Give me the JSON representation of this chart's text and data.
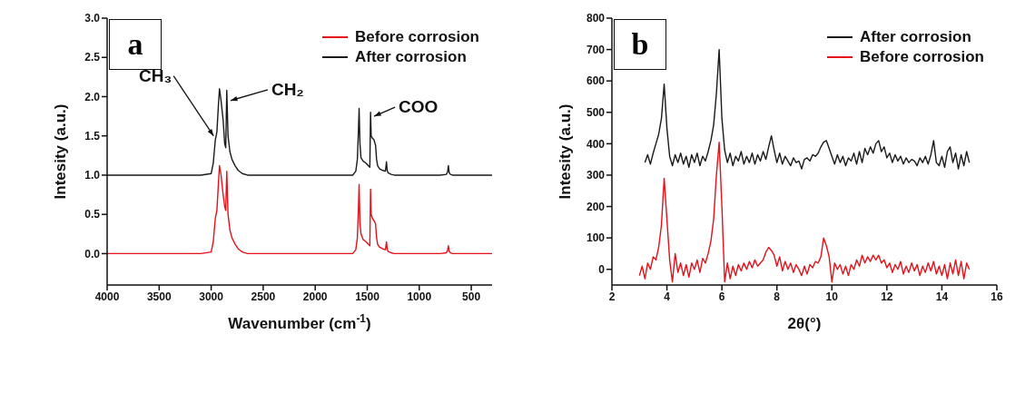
{
  "chart_data": [
    {
      "type": "line",
      "title": "a",
      "xlabel": "Wavenumber (cm$^{-1}$)",
      "ylabel": "Intesity (a.u.)",
      "xlim": [
        4000,
        300
      ],
      "xticks": [
        4000,
        3500,
        3000,
        2500,
        2000,
        1500,
        1000,
        500
      ],
      "ylim": [
        -0.4,
        3.0
      ],
      "yticks": [
        {
          "value": 0,
          "label": "0.0"
        },
        {
          "value": 0.5,
          "label": "0.5"
        },
        {
          "value": 1,
          "label": "1.0"
        },
        {
          "value": 1.5,
          "label": "1.5"
        },
        {
          "value": 2,
          "label": "2.0"
        },
        {
          "value": 2.5,
          "label": "2.5"
        },
        {
          "value": 3,
          "label": "3.0"
        }
      ],
      "grid": false,
      "legend": "top right",
      "marker": "none",
      "line_style": "solid",
      "annotations": [
        {
          "text": "CH₃",
          "x": 2960,
          "y": 1.5
        },
        {
          "text": "CH₂",
          "x": 2840,
          "y": 1.95
        },
        {
          "text": "COO",
          "x": 1460,
          "y": 1.75
        }
      ],
      "series": [
        {
          "name": "Before corrosion",
          "color": "#e3121b",
          "x": [
            4000,
            3100,
            3000,
            2980,
            2960,
            2945,
            2930,
            2920,
            2905,
            2885,
            2870,
            2860,
            2850,
            2838,
            2820,
            2800,
            2770,
            2740,
            2700,
            2650,
            1640,
            1610,
            1595,
            1585,
            1578,
            1570,
            1560,
            1540,
            1510,
            1490,
            1475,
            1468,
            1462,
            1450,
            1435,
            1420,
            1410,
            1400,
            1380,
            1350,
            1325,
            1315,
            1308,
            1300,
            1270,
            1240,
            800,
            740,
            728,
            720,
            712,
            700,
            680,
            300
          ],
          "values": [
            0,
            0,
            0.02,
            0.15,
            0.45,
            0.55,
            0.9,
            1.12,
            1.0,
            0.75,
            0.6,
            0.55,
            1.05,
            0.5,
            0.3,
            0.2,
            0.12,
            0.06,
            0.02,
            0,
            0,
            0.05,
            0.2,
            0.55,
            0.88,
            0.4,
            0.25,
            0.18,
            0.15,
            0.12,
            0.1,
            0.82,
            0.5,
            0.45,
            0.42,
            0.38,
            0.2,
            0.12,
            0.08,
            0.06,
            0.05,
            0.15,
            0.06,
            0.03,
            0.01,
            0,
            0,
            0.01,
            0.04,
            0.1,
            0.03,
            0.01,
            0,
            0
          ]
        },
        {
          "name": "After corrosion",
          "color": "#1a1a1a",
          "x": [
            4000,
            3100,
            3000,
            2980,
            2960,
            2945,
            2930,
            2920,
            2905,
            2885,
            2870,
            2860,
            2850,
            2838,
            2820,
            2800,
            2770,
            2740,
            2700,
            2650,
            1640,
            1610,
            1595,
            1585,
            1578,
            1570,
            1560,
            1540,
            1510,
            1490,
            1475,
            1468,
            1462,
            1450,
            1435,
            1420,
            1410,
            1400,
            1380,
            1350,
            1325,
            1315,
            1308,
            1300,
            1270,
            1240,
            800,
            740,
            728,
            720,
            712,
            700,
            680,
            300
          ],
          "values": [
            1,
            1,
            1.02,
            1.15,
            1.45,
            1.55,
            1.9,
            2.1,
            1.95,
            1.7,
            1.4,
            1.35,
            2.08,
            1.5,
            1.3,
            1.2,
            1.12,
            1.06,
            1.02,
            1,
            1,
            1.05,
            1.2,
            1.55,
            1.85,
            1.4,
            1.22,
            1.18,
            1.15,
            1.12,
            1.1,
            1.8,
            1.5,
            1.47,
            1.45,
            1.38,
            1.2,
            1.12,
            1.08,
            1.06,
            1.05,
            1.17,
            1.06,
            1.03,
            1.01,
            1,
            1,
            1.01,
            1.04,
            1.12,
            1.03,
            1.01,
            1,
            1
          ]
        }
      ]
    },
    {
      "type": "line",
      "title": "b",
      "xlabel": "2θ(°)",
      "ylabel": "Intesity (a.u.)",
      "xlim": [
        2,
        16
      ],
      "xticks": [
        2,
        4,
        6,
        8,
        10,
        12,
        14,
        16
      ],
      "ylim": [
        -50,
        800
      ],
      "yticks": [
        0,
        100,
        200,
        300,
        400,
        500,
        600,
        700,
        800
      ],
      "grid": false,
      "legend": "top right",
      "marker": "none",
      "line_style": "solid",
      "series": [
        {
          "name": "After corrosion",
          "color": "#1a1a1a",
          "x": [
            3.2,
            3.3,
            3.4,
            3.5,
            3.6,
            3.7,
            3.8,
            3.9,
            4.0,
            4.1,
            4.2,
            4.3,
            4.4,
            4.5,
            4.6,
            4.7,
            4.8,
            4.9,
            5.0,
            5.1,
            5.2,
            5.3,
            5.4,
            5.5,
            5.6,
            5.7,
            5.8,
            5.9,
            6.0,
            6.1,
            6.2,
            6.3,
            6.4,
            6.5,
            6.6,
            6.7,
            6.8,
            6.9,
            7.0,
            7.1,
            7.2,
            7.3,
            7.4,
            7.5,
            7.6,
            7.7,
            7.8,
            7.9,
            8.0,
            8.1,
            8.2,
            8.3,
            8.4,
            8.5,
            8.6,
            8.7,
            8.8,
            8.9,
            9.0,
            9.1,
            9.2,
            9.3,
            9.4,
            9.5,
            9.6,
            9.7,
            9.8,
            9.9,
            10.0,
            10.1,
            10.2,
            10.3,
            10.4,
            10.5,
            10.6,
            10.7,
            10.8,
            10.9,
            11.0,
            11.1,
            11.2,
            11.3,
            11.4,
            11.5,
            11.6,
            11.7,
            11.8,
            11.9,
            12.0,
            12.1,
            12.2,
            12.3,
            12.4,
            12.5,
            12.6,
            12.7,
            12.8,
            12.9,
            13.0,
            13.1,
            13.2,
            13.3,
            13.4,
            13.5,
            13.6,
            13.7,
            13.8,
            13.9,
            14.0,
            14.1,
            14.2,
            14.3,
            14.4,
            14.5,
            14.6,
            14.7,
            14.8,
            14.9,
            15.0
          ],
          "values": [
            340,
            365,
            335,
            370,
            400,
            430,
            480,
            590,
            450,
            360,
            330,
            365,
            340,
            370,
            335,
            360,
            325,
            365,
            340,
            370,
            330,
            360,
            345,
            375,
            410,
            460,
            560,
            700,
            480,
            380,
            340,
            370,
            330,
            360,
            345,
            375,
            335,
            360,
            340,
            370,
            335,
            365,
            345,
            375,
            350,
            390,
            425,
            380,
            340,
            370,
            335,
            360,
            345,
            330,
            355,
            340,
            345,
            320,
            350,
            355,
            345,
            365,
            360,
            370,
            390,
            405,
            410,
            385,
            360,
            335,
            365,
            340,
            360,
            330,
            355,
            345,
            370,
            335,
            375,
            340,
            385,
            365,
            390,
            370,
            400,
            410,
            375,
            390,
            355,
            370,
            340,
            365,
            345,
            360,
            335,
            355,
            340,
            350,
            345,
            330,
            355,
            340,
            360,
            335,
            365,
            410,
            340,
            330,
            360,
            325,
            375,
            390,
            340,
            370,
            320,
            365,
            330,
            375,
            340
          ]
        },
        {
          "name": "Before corrosion",
          "color": "#e3121b",
          "x": [
            3.0,
            3.1,
            3.2,
            3.3,
            3.4,
            3.5,
            3.6,
            3.7,
            3.8,
            3.9,
            4.0,
            4.1,
            4.2,
            4.3,
            4.4,
            4.5,
            4.6,
            4.7,
            4.8,
            4.9,
            5.0,
            5.1,
            5.2,
            5.3,
            5.4,
            5.5,
            5.6,
            5.7,
            5.8,
            5.9,
            6.0,
            6.1,
            6.2,
            6.3,
            6.4,
            6.5,
            6.6,
            6.7,
            6.8,
            6.9,
            7.0,
            7.1,
            7.2,
            7.3,
            7.4,
            7.5,
            7.6,
            7.7,
            7.8,
            7.9,
            8.0,
            8.1,
            8.2,
            8.3,
            8.4,
            8.5,
            8.6,
            8.7,
            8.8,
            8.9,
            9.0,
            9.1,
            9.2,
            9.3,
            9.4,
            9.5,
            9.6,
            9.7,
            9.8,
            9.9,
            10.0,
            10.1,
            10.2,
            10.3,
            10.4,
            10.5,
            10.6,
            10.7,
            10.8,
            10.9,
            11.0,
            11.1,
            11.2,
            11.3,
            11.4,
            11.5,
            11.6,
            11.7,
            11.8,
            11.9,
            12.0,
            12.1,
            12.2,
            12.3,
            12.4,
            12.5,
            12.6,
            12.7,
            12.8,
            12.9,
            13.0,
            13.1,
            13.2,
            13.3,
            13.4,
            13.5,
            13.6,
            13.7,
            13.8,
            13.9,
            14.0,
            14.1,
            14.2,
            14.3,
            14.4,
            14.5,
            14.6,
            14.7,
            14.8,
            14.9,
            15.0
          ],
          "values": [
            -20,
            10,
            -30,
            20,
            0,
            40,
            30,
            70,
            140,
            290,
            160,
            30,
            -40,
            50,
            -10,
            20,
            -20,
            15,
            -25,
            20,
            0,
            30,
            -10,
            35,
            20,
            50,
            90,
            160,
            300,
            405,
            200,
            -40,
            20,
            -30,
            10,
            -20,
            15,
            -5,
            20,
            0,
            25,
            5,
            30,
            10,
            20,
            30,
            55,
            70,
            60,
            45,
            10,
            40,
            -5,
            25,
            0,
            20,
            -10,
            15,
            0,
            -20,
            10,
            -15,
            15,
            5,
            25,
            20,
            40,
            100,
            75,
            40,
            -40,
            20,
            0,
            15,
            -15,
            10,
            -20,
            15,
            0,
            30,
            10,
            45,
            20,
            40,
            25,
            45,
            30,
            45,
            20,
            30,
            5,
            20,
            -10,
            15,
            0,
            25,
            -15,
            10,
            -10,
            20,
            -5,
            15,
            -20,
            10,
            -10,
            20,
            -5,
            25,
            -15,
            10,
            -20,
            15,
            -30,
            20,
            -15,
            30,
            -20,
            25,
            -30,
            20,
            0
          ]
        }
      ]
    }
  ]
}
